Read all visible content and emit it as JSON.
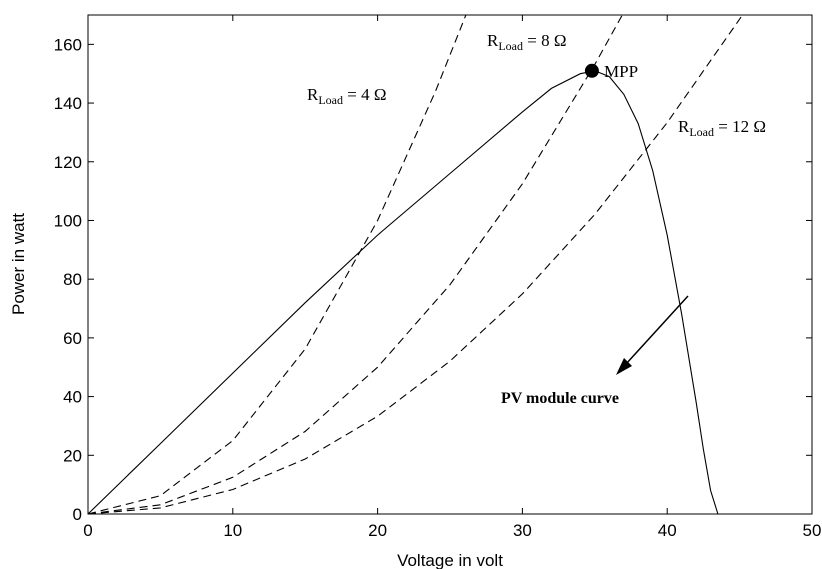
{
  "chart_data": {
    "type": "line",
    "xlabel": "Voltage in volt",
    "ylabel": "Power in watt",
    "xlim": [
      0,
      50
    ],
    "ylim": [
      0,
      170
    ],
    "xticks": [
      0,
      10,
      20,
      30,
      40,
      50
    ],
    "yticks": [
      0,
      20,
      40,
      60,
      80,
      100,
      120,
      140,
      160
    ],
    "grid": false,
    "series": [
      {
        "label": "PV module curve",
        "style": "solid",
        "x": [
          0,
          5,
          10,
          15,
          20,
          25,
          30,
          32,
          34,
          35,
          36,
          37,
          38,
          39,
          40,
          41,
          42,
          42.5,
          43,
          43.5
        ],
        "y": [
          0,
          24,
          48,
          72,
          95,
          116,
          137,
          145,
          150,
          151,
          149,
          143,
          133,
          117,
          95,
          68,
          38,
          22,
          8,
          0
        ]
      },
      {
        "label": "R_Load = 4 Ω",
        "style": "dashed",
        "x": [
          0,
          5,
          10,
          15,
          20,
          24,
          26.1
        ],
        "y": [
          0,
          6.25,
          25,
          56.25,
          100,
          144,
          170.3
        ]
      },
      {
        "label": "R_Load = 8 Ω",
        "style": "dashed",
        "x": [
          0,
          5,
          10,
          15,
          20,
          25,
          30,
          35,
          36.9
        ],
        "y": [
          0,
          3.13,
          12.5,
          28.13,
          50,
          78.13,
          112.5,
          153.13,
          170.2
        ]
      },
      {
        "label": "R_Load = 12 Ω",
        "style": "dashed",
        "x": [
          0,
          5,
          10,
          15,
          20,
          25,
          30,
          35,
          40,
          45.2
        ],
        "y": [
          0,
          2.08,
          8.33,
          18.75,
          33.33,
          52.08,
          75,
          102.08,
          133.33,
          170.3
        ]
      }
    ],
    "mpp": {
      "label": "MPP",
      "x": 34.8,
      "y": 151
    },
    "annotations": [
      {
        "id": "r4",
        "prefix": "R",
        "sub": "Load",
        "suffix": " = 4 Ω"
      },
      {
        "id": "r8",
        "prefix": "R",
        "sub": "Load",
        "suffix": " = 8 Ω"
      },
      {
        "id": "r12",
        "prefix": "R",
        "sub": "Load",
        "suffix": " = 12 Ω"
      },
      {
        "id": "pv",
        "text": "PV module curve"
      }
    ]
  }
}
